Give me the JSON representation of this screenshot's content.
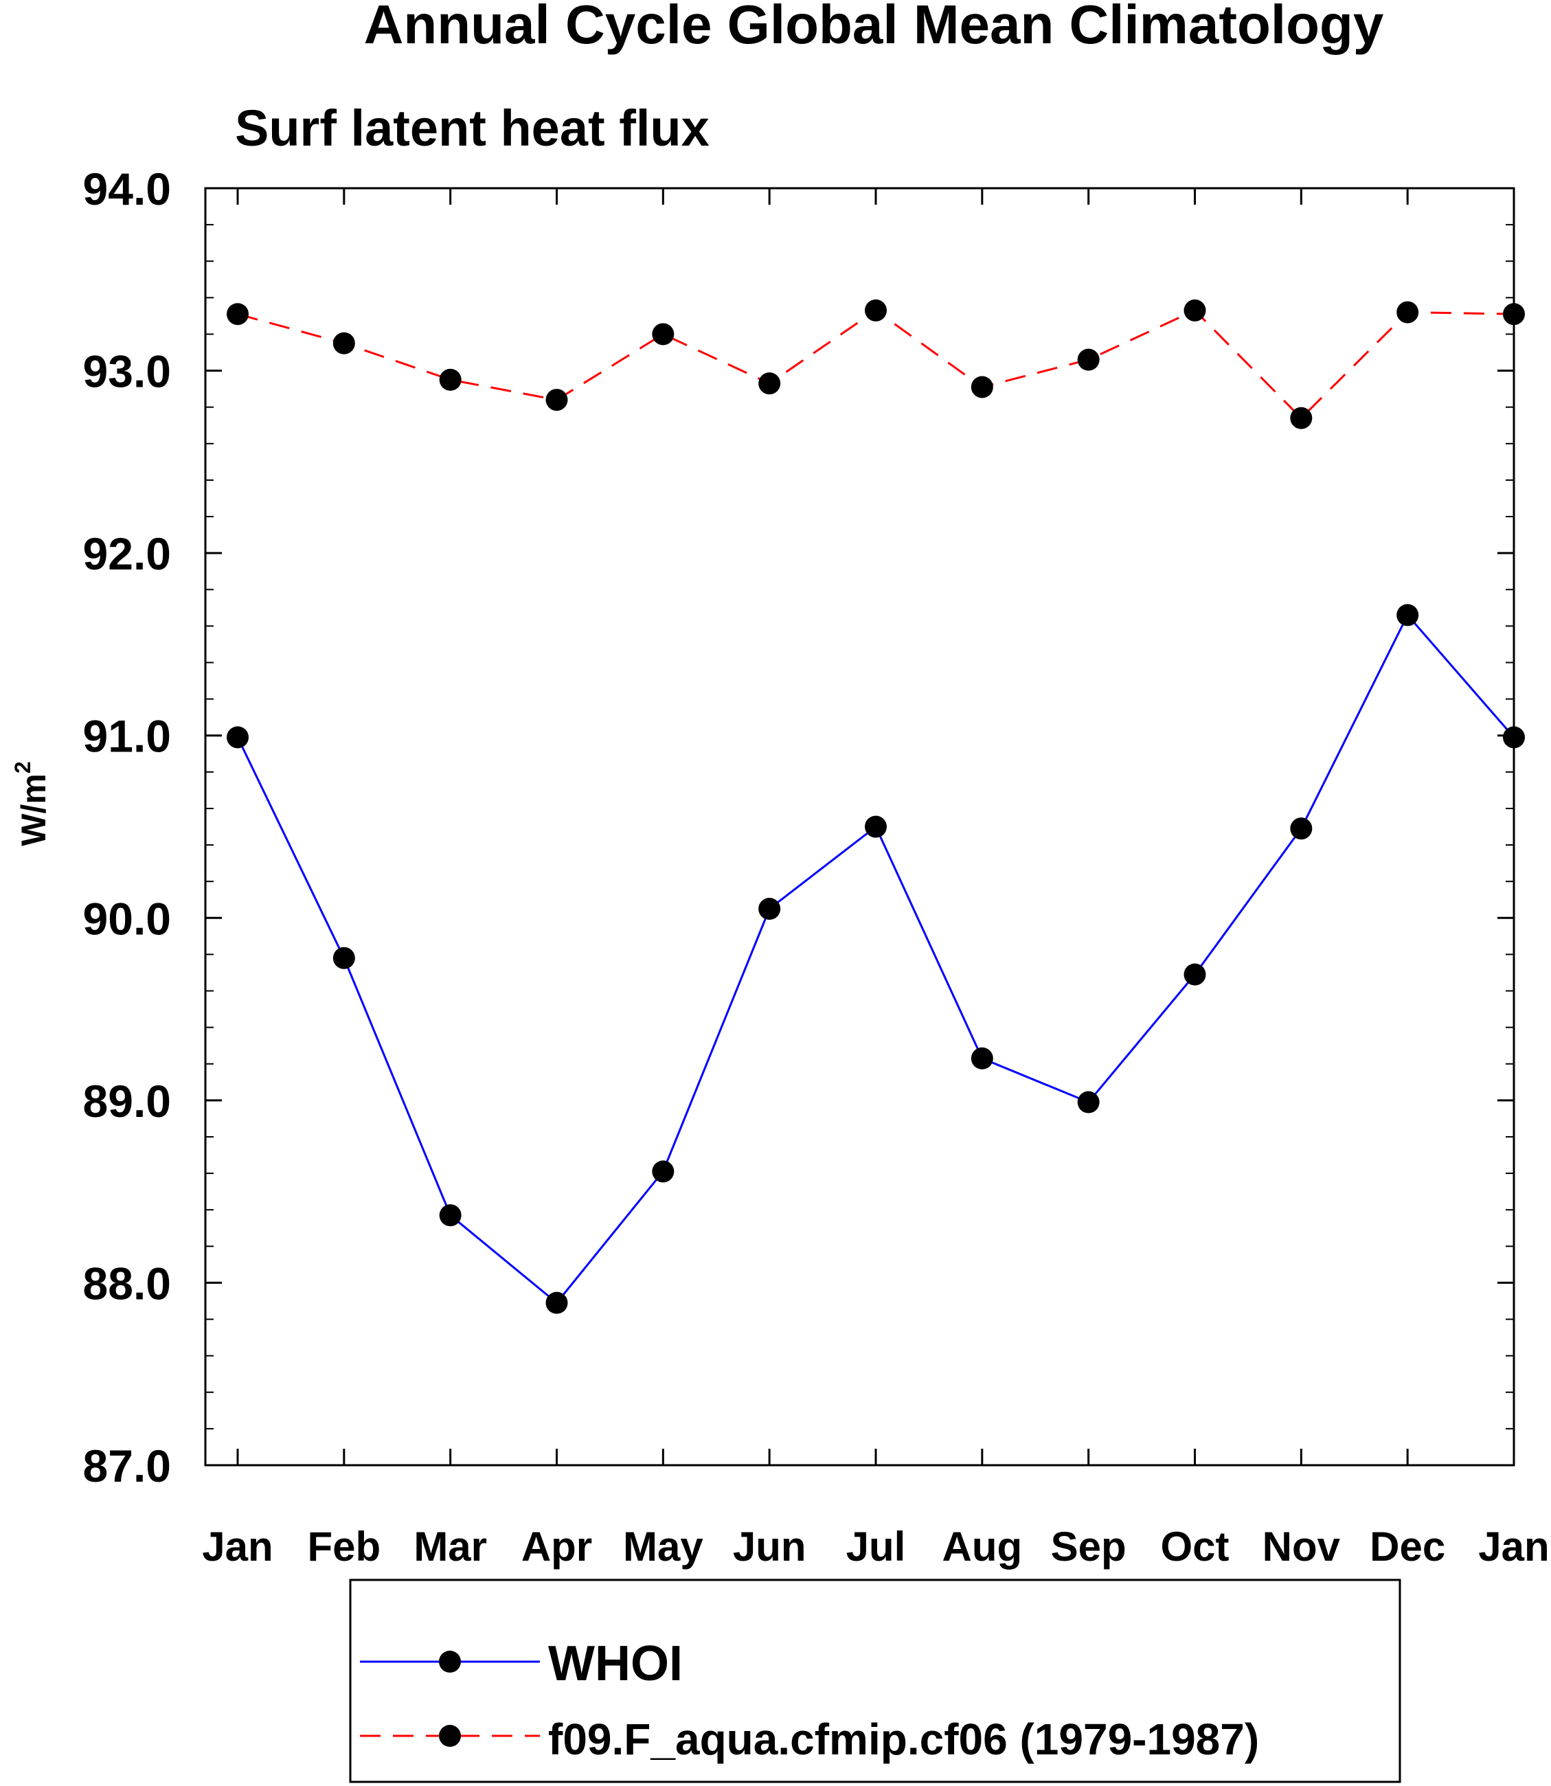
{
  "chart_data": {
    "type": "line",
    "title": "Annual Cycle Global Mean Climatology",
    "subtitle": "Surf latent heat flux",
    "xlabel": "",
    "ylabel": "W/m",
    "ylabel_superscript": "2",
    "categories": [
      "Jan",
      "Feb",
      "Mar",
      "Apr",
      "May",
      "Jun",
      "Jul",
      "Aug",
      "Sep",
      "Oct",
      "Nov",
      "Dec",
      "Jan"
    ],
    "ylim": [
      87.0,
      94.0
    ],
    "y_ticks": [
      "87.0",
      "88.0",
      "89.0",
      "90.0",
      "91.0",
      "92.0",
      "93.0",
      "94.0"
    ],
    "y_tick_values": [
      87.0,
      88.0,
      89.0,
      90.0,
      91.0,
      92.0,
      93.0,
      94.0
    ],
    "y_minor_step": 0.2,
    "grid": false,
    "legend_position": "bottom-center",
    "series": [
      {
        "name": "WHOI",
        "color": "#0000ff",
        "line_style": "solid",
        "marker": "filled-circle",
        "values": [
          90.99,
          89.78,
          88.37,
          87.89,
          88.61,
          90.05,
          90.5,
          89.23,
          88.99,
          89.69,
          90.49,
          91.66,
          90.99
        ]
      },
      {
        "name": "f09.F_aqua.cfmip.cf06 (1979-1987)",
        "color": "#ff0000",
        "line_style": "dashed",
        "marker": "filled-circle",
        "values": [
          93.31,
          93.15,
          92.95,
          92.84,
          93.2,
          92.93,
          93.33,
          92.91,
          93.06,
          93.33,
          92.74,
          93.32,
          93.31
        ]
      }
    ]
  }
}
